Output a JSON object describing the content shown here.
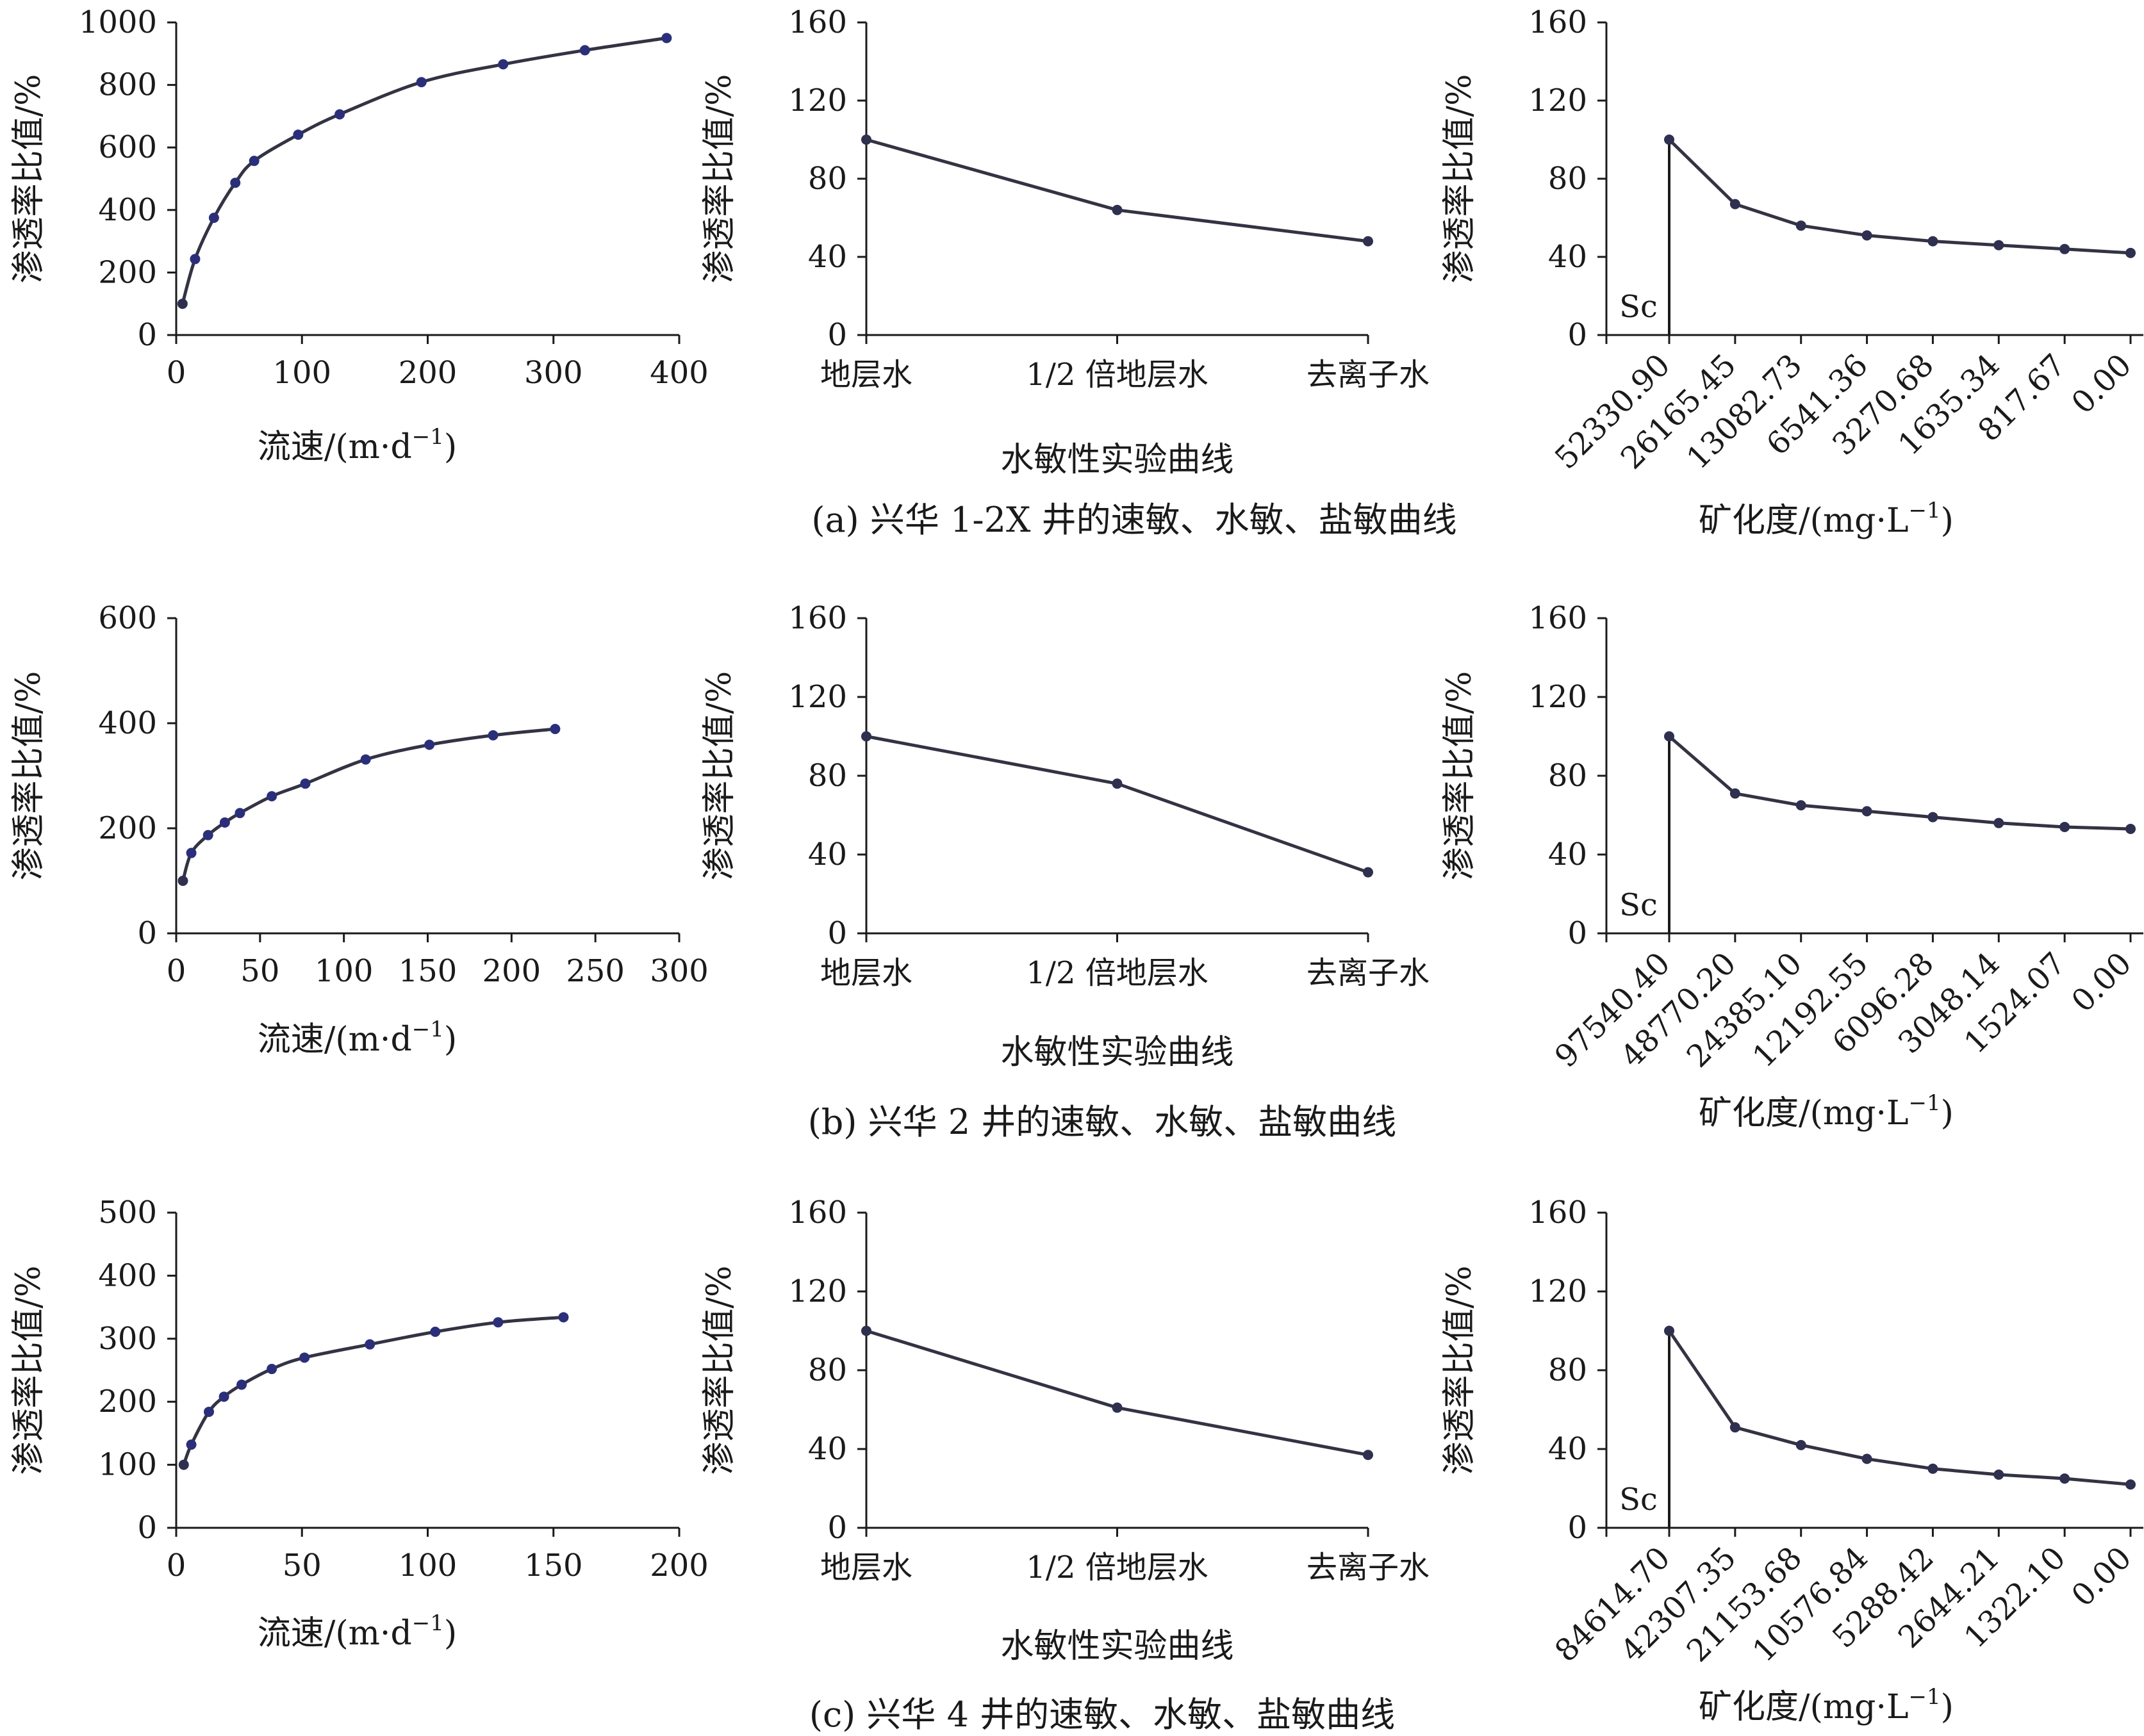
{
  "chart_data": [
    {
      "type": "line",
      "row": "a",
      "kind": "velocity",
      "xlabel": "流速/(m·d",
      "xlabel_unit_sup": "−1",
      "xlabel_close": ")",
      "ylabel": "渗透率比值/%",
      "xlim": [
        0,
        400
      ],
      "xticks": [
        "0",
        "100",
        "200",
        "300",
        "400"
      ],
      "ylim": [
        0,
        1000
      ],
      "yticks": [
        "0",
        "200",
        "400",
        "600",
        "800",
        "1000"
      ],
      "x": [
        5,
        15,
        30,
        47,
        62,
        97,
        130,
        195,
        260,
        325,
        390
      ],
      "y": [
        100,
        243,
        375,
        487,
        557,
        641,
        706,
        809,
        866,
        911,
        950
      ]
    },
    {
      "type": "line",
      "row": "a",
      "kind": "water",
      "xlabel": "水敏性实验曲线",
      "ylabel": "渗透率比值/%",
      "categories": [
        "地层水",
        "1/2 倍地层水",
        "去离子水"
      ],
      "ylim": [
        0,
        160
      ],
      "yticks": [
        "0",
        "40",
        "80",
        "120",
        "160"
      ],
      "values": [
        100,
        64,
        48
      ]
    },
    {
      "type": "line",
      "row": "a",
      "kind": "salinity",
      "xlabel": "矿化度/(mg·L",
      "xlabel_unit_sup": "−1",
      "xlabel_close": ")",
      "ylabel": "渗透率比值/%",
      "sc_label": "Sc",
      "categories": [
        "52330.90",
        "26165.45",
        "13082.73",
        "6541.36",
        "3270.68",
        "1635.34",
        "817.67",
        "0.00"
      ],
      "ylim": [
        0,
        160
      ],
      "yticks": [
        "0",
        "40",
        "80",
        "120",
        "160"
      ],
      "values": [
        100,
        67,
        56,
        51,
        48,
        46,
        44,
        42
      ]
    },
    {
      "type": "line",
      "row": "b",
      "kind": "velocity",
      "xlabel": "流速/(m·d",
      "xlabel_unit_sup": "−1",
      "xlabel_close": ")",
      "ylabel": "渗透率比值/%",
      "xlim": [
        0,
        300
      ],
      "xticks": [
        "0",
        "50",
        "100",
        "150",
        "200",
        "250",
        "300"
      ],
      "ylim": [
        0,
        600
      ],
      "yticks": [
        "0",
        "200",
        "400",
        "600"
      ],
      "x": [
        4,
        9,
        19,
        29,
        38,
        57,
        77,
        113,
        151,
        189,
        226
      ],
      "y": [
        100,
        153,
        187,
        211,
        229,
        261,
        285,
        331,
        359,
        377,
        389
      ]
    },
    {
      "type": "line",
      "row": "b",
      "kind": "water",
      "xlabel": "水敏性实验曲线",
      "ylabel": "渗透率比值/%",
      "categories": [
        "地层水",
        "1/2 倍地层水",
        "去离子水"
      ],
      "ylim": [
        0,
        160
      ],
      "yticks": [
        "0",
        "40",
        "80",
        "120",
        "160"
      ],
      "values": [
        100,
        76,
        31
      ]
    },
    {
      "type": "line",
      "row": "b",
      "kind": "salinity",
      "xlabel": "矿化度/(mg·L",
      "xlabel_unit_sup": "−1",
      "xlabel_close": ")",
      "ylabel": "渗透率比值/%",
      "sc_label": "Sc",
      "categories": [
        "97540.40",
        "48770.20",
        "24385.10",
        "12192.55",
        "6096.28",
        "3048.14",
        "1524.07",
        "0.00"
      ],
      "ylim": [
        0,
        160
      ],
      "yticks": [
        "0",
        "40",
        "80",
        "120",
        "160"
      ],
      "values": [
        100,
        71,
        65,
        62,
        59,
        56,
        54,
        53
      ]
    },
    {
      "type": "line",
      "row": "c",
      "kind": "velocity",
      "xlabel": "流速/(m·d",
      "xlabel_unit_sup": "−1",
      "xlabel_close": ")",
      "ylabel": "渗透率比值/%",
      "xlim": [
        0,
        200
      ],
      "xticks": [
        "0",
        "50",
        "100",
        "150",
        "200"
      ],
      "ylim": [
        0,
        500
      ],
      "yticks": [
        "0",
        "100",
        "200",
        "300",
        "400",
        "500"
      ],
      "x": [
        3,
        6,
        13,
        19,
        26,
        38,
        51,
        77,
        103,
        128,
        154
      ],
      "y": [
        100,
        132,
        184,
        208,
        227,
        252,
        270,
        291,
        311,
        326,
        334
      ]
    },
    {
      "type": "line",
      "row": "c",
      "kind": "water",
      "xlabel": "水敏性实验曲线",
      "ylabel": "渗透率比值/%",
      "categories": [
        "地层水",
        "1/2 倍地层水",
        "去离子水"
      ],
      "ylim": [
        0,
        160
      ],
      "yticks": [
        "0",
        "40",
        "80",
        "120",
        "160"
      ],
      "values": [
        100,
        61,
        37
      ]
    },
    {
      "type": "line",
      "row": "c",
      "kind": "salinity",
      "xlabel": "矿化度/(mg·L",
      "xlabel_unit_sup": "−1",
      "xlabel_close": ")",
      "ylabel": "渗透率比值/%",
      "sc_label": "Sc",
      "categories": [
        "84614.70",
        "42307.35",
        "21153.68",
        "10576.84",
        "5288.42",
        "2644.21",
        "1322.10",
        "0.00"
      ],
      "ylim": [
        0,
        160
      ],
      "yticks": [
        "0",
        "40",
        "80",
        "120",
        "160"
      ],
      "values": [
        100,
        51,
        42,
        35,
        30,
        27,
        25,
        22
      ]
    }
  ],
  "captions": [
    "(a) 兴华 1-2X 井的速敏、水敏、盐敏曲线",
    "(b) 兴华 2 井的速敏、水敏、盐敏曲线",
    "(c) 兴华 4 井的速敏、水敏、盐敏曲线"
  ]
}
